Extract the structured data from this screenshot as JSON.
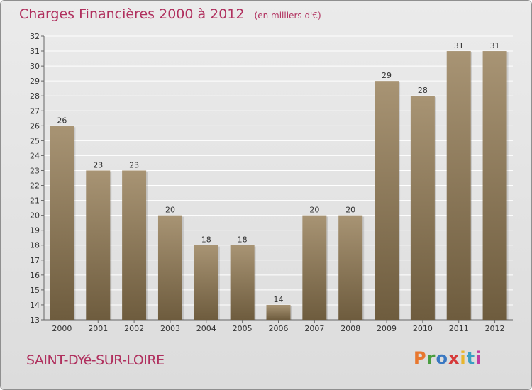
{
  "header": {
    "title": "Charges Financières 2000 à 2012",
    "subtitle": "(en milliers d'€)"
  },
  "footer": {
    "place": "SAINT-DYé-SUR-LOIRE",
    "logo": "Proxiti"
  },
  "colors": {
    "title": "#b0305e",
    "bar_top": "#a89474",
    "bar_bottom": "#6e5c3e",
    "grid": "#ffffff",
    "background": "#e3e3e3",
    "logo": [
      "#e8772e",
      "#4a9d3f",
      "#3a78c2",
      "#d63a3a",
      "#e8b62e",
      "#3a9fc2",
      "#c23a9f"
    ]
  },
  "chart_data": {
    "type": "bar",
    "title": "Charges Financières 2000 à 2012",
    "subtitle": "(en milliers d'€)",
    "categories": [
      "2000",
      "2001",
      "2002",
      "2003",
      "2004",
      "2005",
      "2006",
      "2007",
      "2008",
      "2009",
      "2010",
      "2011",
      "2012"
    ],
    "values": [
      26,
      23,
      23,
      20,
      18,
      18,
      14,
      20,
      20,
      29,
      28,
      31,
      31
    ],
    "ylim": [
      13,
      32
    ],
    "yticks": [
      13,
      14,
      15,
      16,
      17,
      18,
      19,
      20,
      21,
      22,
      23,
      24,
      25,
      26,
      27,
      28,
      29,
      30,
      31,
      32
    ],
    "grid": true,
    "data_labels": true
  }
}
